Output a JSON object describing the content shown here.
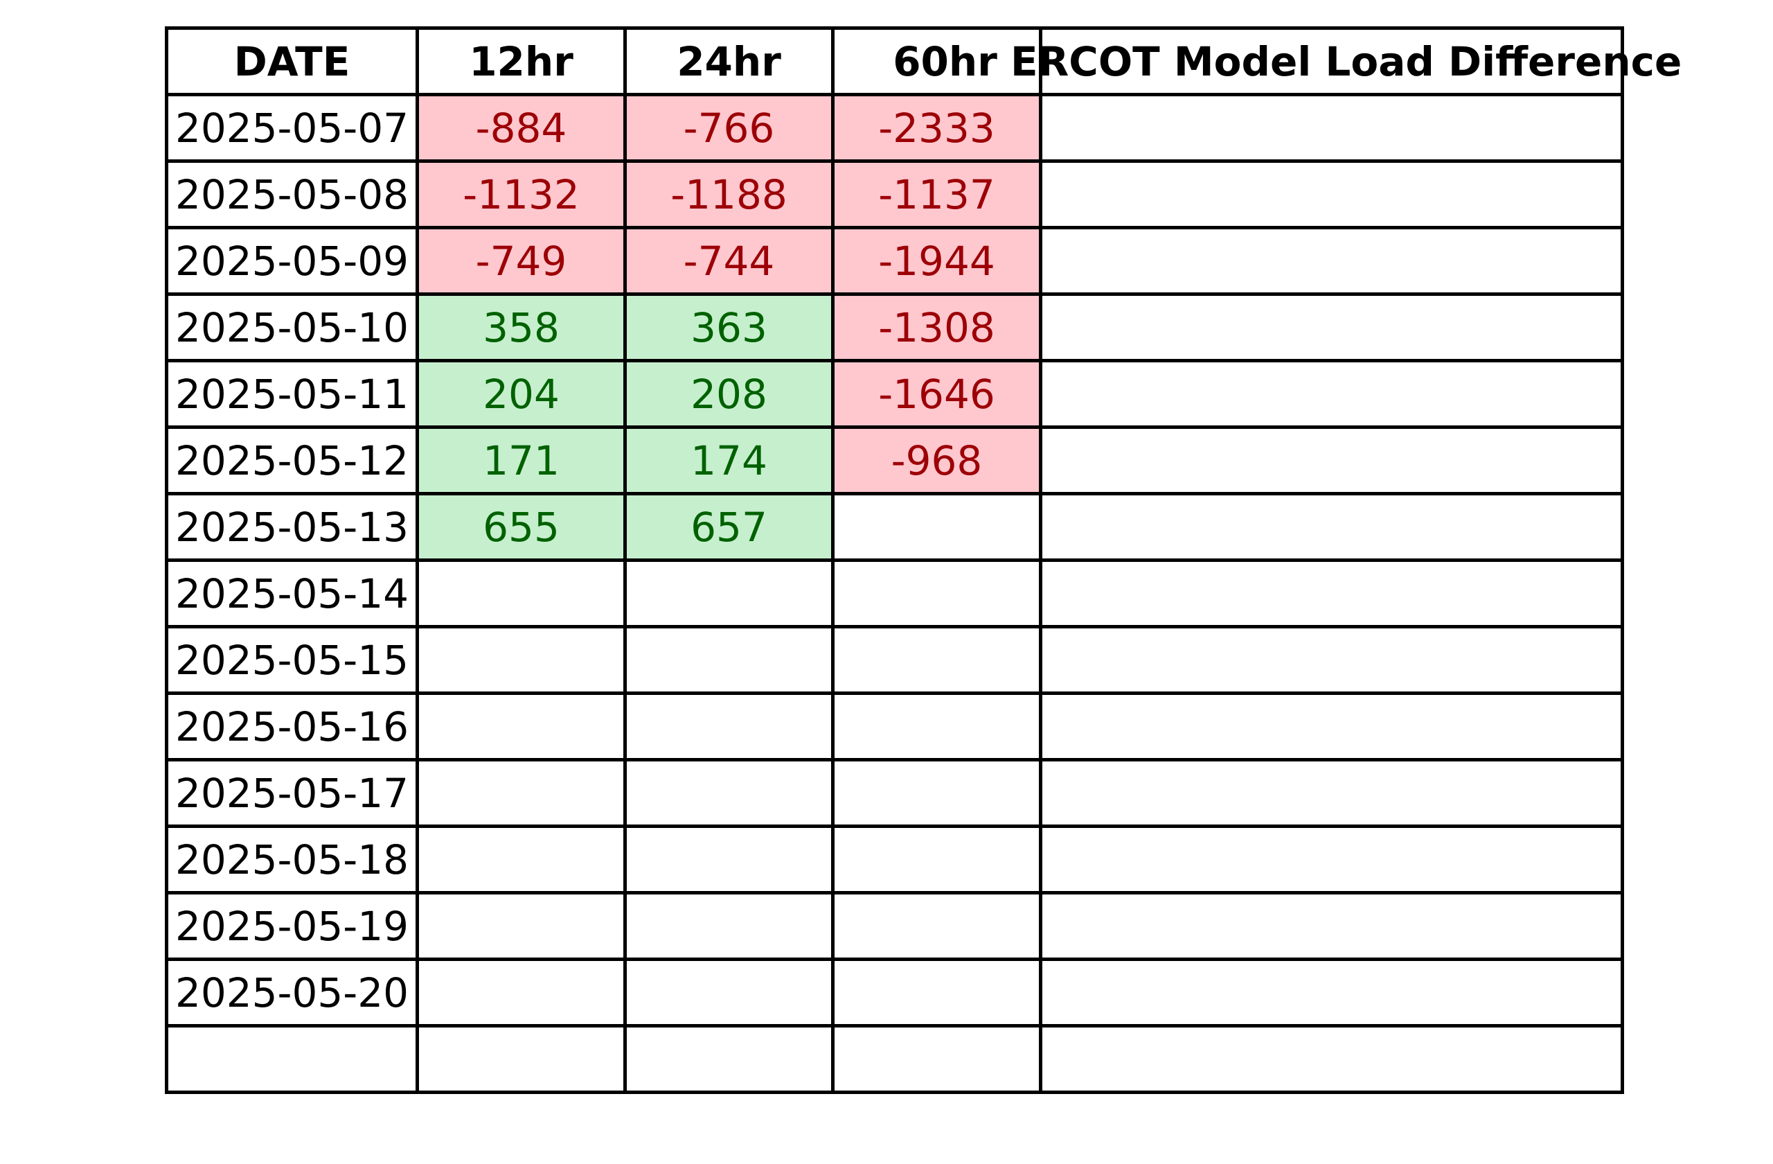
{
  "chart_data": {
    "type": "table",
    "columns": [
      "DATE",
      "12hr",
      "24hr",
      "60hr",
      "ERCOT Model Load Difference"
    ],
    "rows": [
      {
        "date": "2025-05-07",
        "h12": "-884",
        "h24": "-766",
        "h60": "-2333",
        "model": ""
      },
      {
        "date": "2025-05-08",
        "h12": "-1132",
        "h24": "-1188",
        "h60": "-1137",
        "model": ""
      },
      {
        "date": "2025-05-09",
        "h12": "-749",
        "h24": "-744",
        "h60": "-1944",
        "model": ""
      },
      {
        "date": "2025-05-10",
        "h12": "358",
        "h24": "363",
        "h60": "-1308",
        "model": ""
      },
      {
        "date": "2025-05-11",
        "h12": "204",
        "h24": "208",
        "h60": "-1646",
        "model": ""
      },
      {
        "date": "2025-05-12",
        "h12": "171",
        "h24": "174",
        "h60": "-968",
        "model": ""
      },
      {
        "date": "2025-05-13",
        "h12": "655",
        "h24": "657",
        "h60": "",
        "model": ""
      },
      {
        "date": "2025-05-14",
        "h12": "",
        "h24": "",
        "h60": "",
        "model": ""
      },
      {
        "date": "2025-05-15",
        "h12": "",
        "h24": "",
        "h60": "",
        "model": ""
      },
      {
        "date": "2025-05-16",
        "h12": "",
        "h24": "",
        "h60": "",
        "model": ""
      },
      {
        "date": "2025-05-17",
        "h12": "",
        "h24": "",
        "h60": "",
        "model": ""
      },
      {
        "date": "2025-05-18",
        "h12": "",
        "h24": "",
        "h60": "",
        "model": ""
      },
      {
        "date": "2025-05-19",
        "h12": "",
        "h24": "",
        "h60": "",
        "model": ""
      },
      {
        "date": "2025-05-20",
        "h12": "",
        "h24": "",
        "h60": "",
        "model": ""
      },
      {
        "date": "",
        "h12": "",
        "h24": "",
        "h60": "",
        "model": ""
      }
    ],
    "colors": {
      "negative_fill": "#ffc7ce",
      "negative_text": "#9c0006",
      "positive_fill": "#c6efce",
      "positive_text": "#006100",
      "border": "#000000"
    }
  }
}
